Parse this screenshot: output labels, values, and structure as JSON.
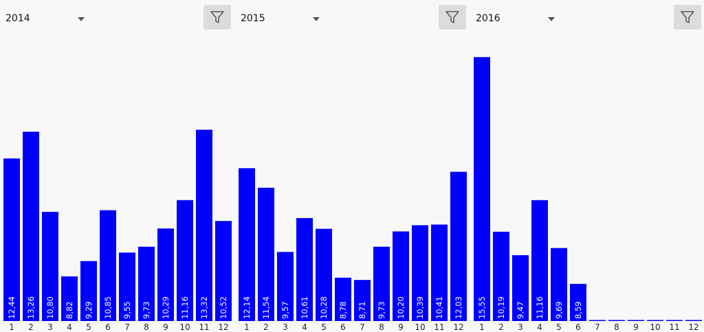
{
  "ui": {
    "bar_color": "#0000ff",
    "background": "#f8f8f8",
    "filter_button_bg": "#dcdcdc",
    "filter_icon": "filter-funnel-icon",
    "dropdown_icon": "chevron-down-icon"
  },
  "chart_data": [
    {
      "type": "bar",
      "year": "2014",
      "categories": [
        "1",
        "2",
        "3",
        "4",
        "5",
        "6",
        "7",
        "8",
        "9",
        "10",
        "11",
        "12"
      ],
      "values": [
        12.44,
        13.26,
        10.8,
        8.82,
        9.29,
        10.85,
        9.55,
        9.73,
        10.29,
        11.16,
        13.32,
        10.52
      ],
      "value_labels": [
        "12,44",
        "13,26",
        "10,80",
        "8,82",
        "9,29",
        "10,85",
        "9,55",
        "9,73",
        "10,29",
        "11,16",
        "13,32",
        "10,52"
      ]
    },
    {
      "type": "bar",
      "year": "2015",
      "categories": [
        "1",
        "2",
        "3",
        "4",
        "5",
        "6",
        "7",
        "8",
        "9",
        "10",
        "11",
        "12"
      ],
      "values": [
        12.14,
        11.54,
        9.57,
        10.61,
        10.28,
        8.78,
        8.71,
        9.73,
        10.2,
        10.39,
        10.41,
        12.03
      ],
      "value_labels": [
        "12,14",
        "11,54",
        "9,57",
        "10,61",
        "10,28",
        "8,78",
        "8,71",
        "9,73",
        "10,20",
        "10,39",
        "10,41",
        "12,03"
      ]
    },
    {
      "type": "bar",
      "year": "2016",
      "categories": [
        "1",
        "2",
        "3",
        "4",
        "5",
        "6",
        "7",
        "8",
        "9",
        "10",
        "11",
        "12"
      ],
      "values": [
        15.55,
        10.19,
        9.47,
        11.16,
        9.69,
        8.59,
        0,
        0,
        0,
        0,
        0,
        0
      ],
      "value_labels": [
        "15,55",
        "10,19",
        "9,47",
        "11,16",
        "9,69",
        "8,59",
        "",
        "",
        "",
        "",
        "",
        ""
      ]
    }
  ]
}
